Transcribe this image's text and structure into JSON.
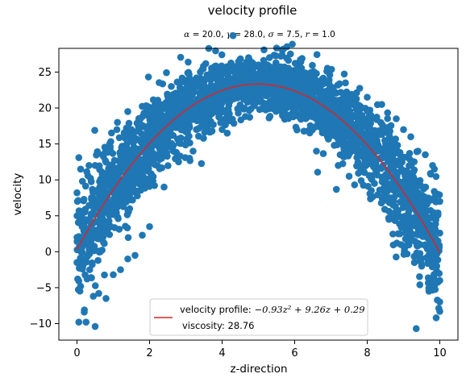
{
  "chart_data": {
    "type": "scatter",
    "title": "velocity profile",
    "subtitle_parts": {
      "alpha": "α",
      "alpha_value": "= 20.0,",
      "gamma": "γ",
      "gamma_value": "= 28.0,",
      "sigma": "σ",
      "sigma_value": "= 7.5,",
      "r": "r",
      "r_value": "= 1.0"
    },
    "xlabel": "z-direction",
    "ylabel": "velocity",
    "xlim": [
      -0.5,
      10.5
    ],
    "ylim": [
      -12.3,
      28.3
    ],
    "xticks": [
      0,
      2,
      4,
      6,
      8,
      10
    ],
    "yticks": [
      -10,
      -5,
      0,
      5,
      10,
      15,
      20,
      25
    ],
    "grid": false,
    "legend_position": "bottom-center",
    "scatter_color": "#1f77b4",
    "fit_color": "#d62728",
    "fit_coefficients": [
      -0.93,
      9.26,
      0.29
    ],
    "legend": {
      "fit_label_prefix": "velocity profile:",
      "fit_label_math": "−0.93z² + 9.26z + 0.29",
      "viscosity_label": "viscosity: 28.76"
    },
    "scatter_points": [
      [
        0.0,
        2.0
      ],
      [
        0.0,
        -1.5
      ],
      [
        0.0,
        5.0
      ],
      [
        0.0,
        8.2
      ],
      [
        0.02,
        -3.8
      ],
      [
        0.05,
        13.1
      ],
      [
        0.05,
        -9.8
      ],
      [
        0.1,
        11.5
      ],
      [
        0.1,
        -4.8
      ],
      [
        0.15,
        9.8
      ],
      [
        0.2,
        -8.4
      ],
      [
        0.25,
        -9.8
      ],
      [
        0.3,
        10.6
      ],
      [
        0.35,
        -2.5
      ],
      [
        0.4,
        7.5
      ],
      [
        0.45,
        -6.2
      ],
      [
        0.5,
        -10.4
      ],
      [
        0.5,
        12.0
      ],
      [
        0.6,
        -5.8
      ],
      [
        0.7,
        13.5
      ],
      [
        0.8,
        -6.5
      ],
      [
        0.9,
        15.0
      ],
      [
        1.0,
        -3.2
      ],
      [
        1.1,
        17.0
      ],
      [
        1.2,
        -2.5
      ],
      [
        1.3,
        16.5
      ],
      [
        1.4,
        -1.0
      ],
      [
        1.5,
        17.0
      ],
      [
        1.4,
        19.5
      ],
      [
        1.6,
        -0.5
      ],
      [
        1.75,
        18.5
      ],
      [
        1.8,
        2.3
      ],
      [
        1.9,
        20.3
      ],
      [
        2.0,
        3.5
      ],
      [
        2.2,
        21.0
      ],
      [
        2.4,
        9.0
      ],
      [
        2.5,
        21.8
      ],
      [
        2.6,
        23.0
      ],
      [
        2.8,
        12.5
      ],
      [
        3.0,
        23.5
      ],
      [
        3.2,
        14.0
      ],
      [
        3.4,
        25.0
      ],
      [
        3.6,
        17.5
      ],
      [
        3.8,
        24.8
      ],
      [
        4.0,
        17.0
      ],
      [
        4.0,
        25.6
      ],
      [
        4.2,
        19.2
      ],
      [
        4.4,
        25.8
      ],
      [
        4.6,
        20.0
      ],
      [
        4.8,
        25.2
      ],
      [
        5.0,
        21.3
      ],
      [
        5.0,
        26.0
      ],
      [
        5.2,
        20.5
      ],
      [
        5.4,
        25.5
      ],
      [
        5.6,
        21.0
      ],
      [
        5.8,
        25.2
      ],
      [
        6.0,
        20.4
      ],
      [
        6.2,
        25.0
      ],
      [
        6.4,
        19.0
      ],
      [
        6.6,
        24.8
      ],
      [
        6.6,
        14.0
      ],
      [
        6.8,
        24.0
      ],
      [
        7.0,
        18.2
      ],
      [
        7.2,
        12.0
      ],
      [
        7.4,
        23.5
      ],
      [
        7.5,
        10.5
      ],
      [
        7.6,
        21.8
      ],
      [
        7.8,
        16.0
      ],
      [
        8.0,
        21.5
      ],
      [
        8.2,
        9.5
      ],
      [
        8.4,
        20.5
      ],
      [
        8.6,
        4.5
      ],
      [
        8.8,
        18.5
      ],
      [
        8.9,
        2.5
      ],
      [
        9.0,
        17.0
      ],
      [
        9.0,
        4.0
      ],
      [
        9.1,
        -0.3
      ],
      [
        9.2,
        16.0
      ],
      [
        9.3,
        -1.5
      ],
      [
        9.35,
        -10.7
      ],
      [
        9.4,
        14.0
      ],
      [
        9.5,
        -2.0
      ],
      [
        9.6,
        13.5
      ],
      [
        9.7,
        -5.5
      ],
      [
        9.75,
        10.8
      ],
      [
        9.8,
        -4.3
      ],
      [
        9.85,
        11.5
      ],
      [
        9.9,
        -9.2
      ],
      [
        9.95,
        8.0
      ],
      [
        10.0,
        -8.3
      ],
      [
        10.0,
        2.6
      ],
      [
        10.0,
        -4.0
      ],
      [
        10.0,
        7.0
      ]
    ]
  }
}
